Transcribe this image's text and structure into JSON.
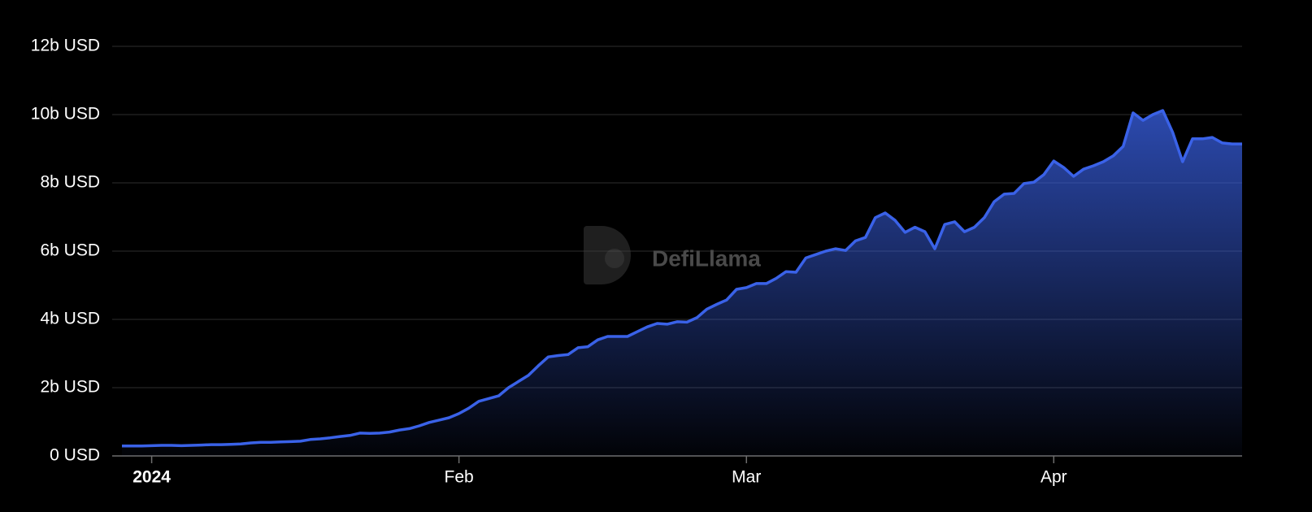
{
  "chart_data": {
    "type": "area",
    "watermark": "DefiLlama",
    "x": [
      -3,
      -2,
      -1,
      0,
      1,
      2,
      3,
      4,
      5,
      6,
      7,
      8,
      9,
      10,
      11,
      12,
      13,
      14,
      15,
      16,
      17,
      18,
      19,
      20,
      21,
      22,
      23,
      24,
      25,
      26,
      27,
      28,
      29,
      30,
      31,
      32,
      33,
      34,
      35,
      36,
      37,
      38,
      39,
      40,
      41,
      42,
      43,
      44,
      45,
      46,
      47,
      48,
      49,
      50,
      51,
      52,
      53,
      54,
      55,
      56,
      57,
      58,
      59,
      60,
      61,
      62,
      63,
      64,
      65,
      66,
      67,
      68,
      69,
      70,
      71,
      72,
      73,
      74,
      75,
      76,
      77,
      78,
      79,
      80,
      81,
      82,
      83,
      84,
      85,
      86,
      87,
      88,
      89,
      90,
      91,
      92,
      93,
      94,
      95,
      96,
      97,
      98,
      99,
      100,
      101,
      102,
      103,
      104,
      105,
      106,
      107,
      108,
      109,
      110
    ],
    "values": [
      0.29,
      0.29,
      0.29,
      0.3,
      0.31,
      0.31,
      0.3,
      0.31,
      0.32,
      0.33,
      0.33,
      0.34,
      0.35,
      0.38,
      0.4,
      0.4,
      0.41,
      0.42,
      0.43,
      0.48,
      0.5,
      0.53,
      0.57,
      0.6,
      0.67,
      0.66,
      0.67,
      0.7,
      0.76,
      0.8,
      0.88,
      0.98,
      1.05,
      1.12,
      1.24,
      1.4,
      1.6,
      1.68,
      1.76,
      2.0,
      2.18,
      2.36,
      2.64,
      2.9,
      2.94,
      2.97,
      3.17,
      3.2,
      3.4,
      3.5,
      3.5,
      3.5,
      3.64,
      3.78,
      3.88,
      3.86,
      3.93,
      3.92,
      4.05,
      4.3,
      4.44,
      4.57,
      4.88,
      4.93,
      5.05,
      5.05,
      5.2,
      5.4,
      5.38,
      5.8,
      5.9,
      6.0,
      6.07,
      6.02,
      6.3,
      6.4,
      6.98,
      7.12,
      6.9,
      6.55,
      6.7,
      6.57,
      6.07,
      6.78,
      6.86,
      6.57,
      6.7,
      6.98,
      7.45,
      7.67,
      7.69,
      7.98,
      8.02,
      8.24,
      8.64,
      8.45,
      8.19,
      8.4,
      8.5,
      8.62,
      8.79,
      9.07,
      10.05,
      9.83,
      10.0,
      10.12,
      9.48,
      8.62,
      9.29,
      9.29,
      9.33,
      9.17,
      9.14,
      9.14
    ],
    "color": "#3a62e8",
    "xlim": [
      -3,
      110
    ],
    "xticks": [
      {
        "value": 0,
        "label": "2024"
      },
      {
        "value": 31,
        "label": "Feb"
      },
      {
        "value": 60,
        "label": "Mar"
      },
      {
        "value": 91,
        "label": "Apr"
      }
    ],
    "ylim": [
      0,
      12
    ],
    "yticks": [
      {
        "value": 0,
        "label": "0 USD"
      },
      {
        "value": 2,
        "label": "2b USD"
      },
      {
        "value": 4,
        "label": "4b USD"
      },
      {
        "value": 6,
        "label": "6b USD"
      },
      {
        "value": 8,
        "label": "8b USD"
      },
      {
        "value": 10,
        "label": "10b USD"
      },
      {
        "value": 12,
        "label": "12b USD"
      }
    ],
    "grid": true
  }
}
